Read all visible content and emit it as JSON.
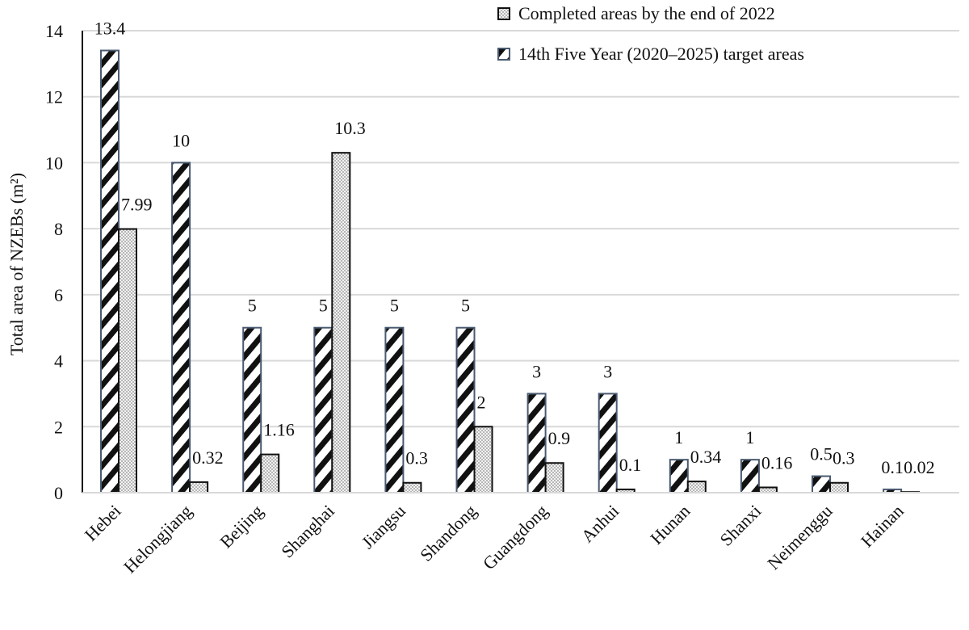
{
  "chart_data": {
    "type": "bar",
    "title": "",
    "xlabel": "",
    "ylabel": "Total area of NZEBs (m²)",
    "ylim": [
      0,
      14
    ],
    "yticks": [
      "0",
      "2",
      "4",
      "6",
      "8",
      "10",
      "12",
      "14"
    ],
    "ytick_values": [
      0,
      2,
      4,
      6,
      8,
      10,
      12,
      14
    ],
    "grid": true,
    "legend_position": "top-right",
    "categories": [
      "Hebei",
      "Helongjiang",
      "Beijing",
      "Shanghai",
      "Jiangsu",
      "Shandong",
      "Guangdong",
      "Anhui",
      "Hunan",
      "Shanxi",
      "Neimenggu",
      "Hainan"
    ],
    "series": [
      {
        "name": "14th Five Year (2020–2025) target areas",
        "pattern": "diagonal-stripes",
        "values": [
          13.4,
          10,
          5,
          5,
          5,
          5,
          3,
          3,
          1,
          1,
          0.5,
          0.1
        ],
        "labels": [
          "13.4",
          "10",
          "5",
          "5",
          "5",
          "5",
          "3",
          "3",
          "1",
          "1",
          "0.5",
          "0.1"
        ]
      },
      {
        "name": "Completed areas by the end of 2022",
        "pattern": "dots",
        "values": [
          7.99,
          0.32,
          1.16,
          10.3,
          0.3,
          2,
          0.9,
          0.1,
          0.34,
          0.16,
          0.3,
          0.02
        ],
        "labels": [
          "7.99",
          "0.32",
          "1.16",
          "10.3",
          "0.3",
          "2",
          "0.9",
          "0.1",
          "0.34",
          "0.16",
          "0.3",
          "0.02"
        ]
      }
    ],
    "legend": [
      "Completed areas by the end of 2022",
      "14th Five Year (2020–2025) target areas"
    ],
    "colors": {
      "target_border": "#4a5a70",
      "completed_border": "#111111",
      "stripe": "#111111",
      "dot": "#9a9a9a",
      "grid": "#d9d9d9",
      "axis": "#111111"
    }
  }
}
